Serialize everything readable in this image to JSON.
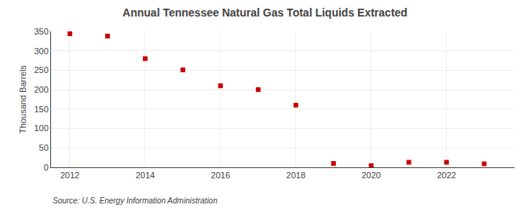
{
  "chart_data": {
    "type": "scatter",
    "title": "Annual Tennessee Natural Gas Total Liquids Extracted",
    "ylabel": "Thousand Barrels",
    "annotations": [
      "Source: U.S. Energy Information Administration"
    ],
    "x": [
      2012,
      2013,
      2014,
      2015,
      2016,
      2017,
      2018,
      2019,
      2020,
      2021,
      2022,
      2023
    ],
    "values": [
      344,
      338,
      280,
      251,
      210,
      200,
      160,
      10,
      4,
      13,
      13,
      9
    ],
    "color": "#cc0000",
    "marker": "square",
    "xlim": [
      2011.5,
      2023.8
    ],
    "xticks": [
      2012,
      2014,
      2016,
      2018,
      2020,
      2022
    ],
    "ylim": [
      0,
      350
    ],
    "yticks": [
      0,
      50,
      100,
      150,
      200,
      250,
      300,
      350
    ],
    "grid": true
  }
}
